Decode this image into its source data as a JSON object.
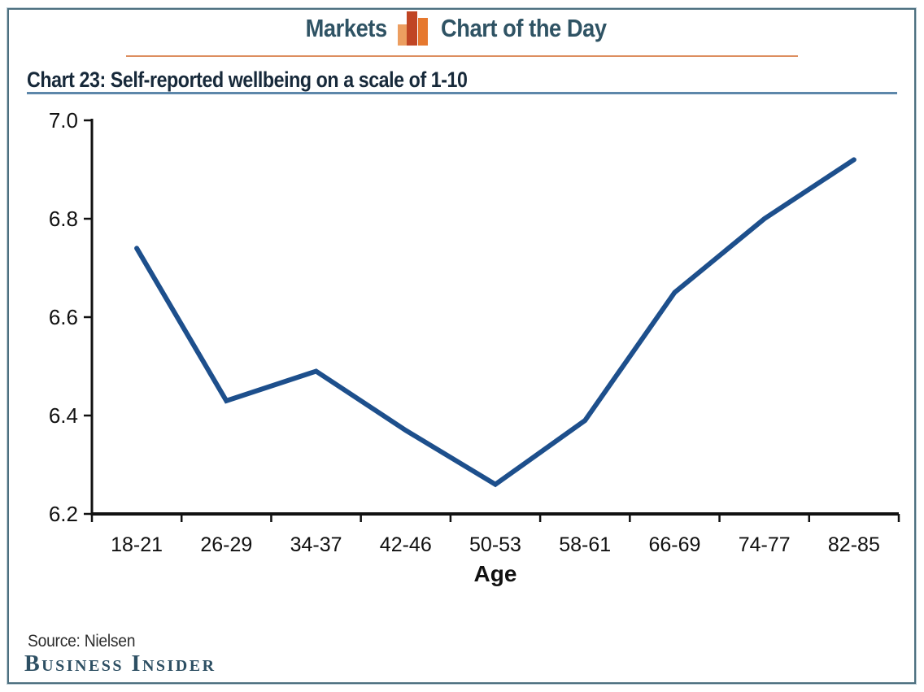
{
  "header": {
    "left_label": "Markets",
    "right_label": "Chart of the Day",
    "icon": "bar-chart-icon"
  },
  "title": "Chart 23: Self-reported wellbeing on a scale of 1-10",
  "footer": {
    "source": "Source: Nielsen",
    "brand": "Business Insider"
  },
  "colors": {
    "frame_border": "#4d7080",
    "header_text": "#2f5364",
    "orange_rule": "#dd8e5f",
    "title_text": "#17293a",
    "title_underline": "#5d87aa",
    "axis": "#111111",
    "line": "#1d4f8c",
    "icon_bar_left": "#ec9e60",
    "icon_bar_mid": "#c04524",
    "icon_bar_right": "#e6782e",
    "brand_text": "#2d4f63"
  },
  "chart_data": {
    "type": "line",
    "title": "Chart 23: Self-reported wellbeing on a scale of 1-10",
    "categories": [
      "18-21",
      "26-29",
      "34-37",
      "42-46",
      "50-53",
      "58-61",
      "66-69",
      "74-77",
      "82-85"
    ],
    "values": [
      6.74,
      6.43,
      6.49,
      6.37,
      6.26,
      6.39,
      6.65,
      6.8,
      6.92
    ],
    "xlabel": "Age",
    "ylabel": "",
    "ylim": [
      6.2,
      7.0
    ],
    "yticks": [
      6.2,
      6.4,
      6.6,
      6.8,
      7.0
    ],
    "grid": false,
    "legend": "none",
    "line_color": "#1d4f8c"
  }
}
